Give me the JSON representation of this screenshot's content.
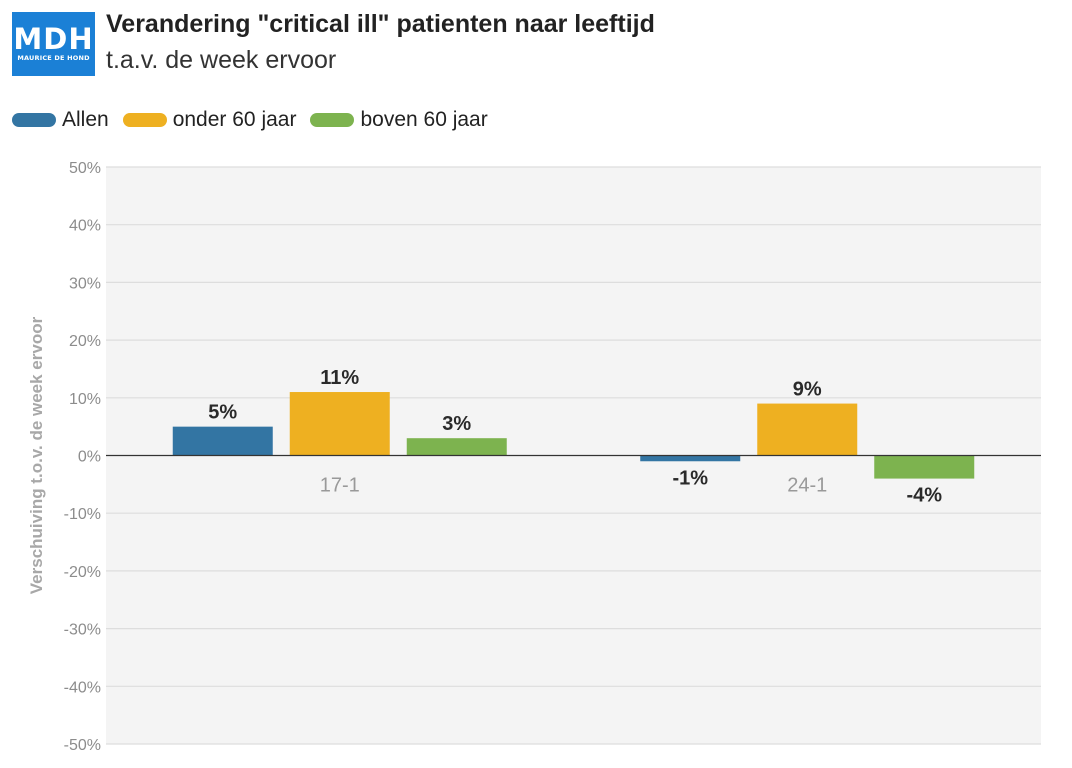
{
  "logo": {
    "main": "MDH",
    "sub": "MAURICE DE HOND"
  },
  "header": {
    "title": "Verandering \"critical ill\" patienten naar leeftijd",
    "subtitle": "t.a.v. de week ervoor"
  },
  "colors": {
    "allen": "#3375a3",
    "onder60": "#eeb021",
    "boven60": "#7db34f",
    "plot_bg": "#f4f4f4",
    "grid": "#dddddd",
    "axis_text": "#8c8c8c",
    "label_text": "#2a2a2a"
  },
  "chart_data": {
    "type": "bar",
    "title": "Verandering \"critical ill\" patienten naar leeftijd",
    "subtitle": "t.a.v. de week ervoor",
    "xlabel": "",
    "ylabel": "Verschuiving t.o.v. de week ervoor",
    "categories": [
      "17-1",
      "24-1"
    ],
    "series": [
      {
        "name": "Allen",
        "values": [
          5,
          -1
        ],
        "labels": [
          "5%",
          "-1%"
        ]
      },
      {
        "name": "onder 60 jaar",
        "values": [
          11,
          9
        ],
        "labels": [
          "11%",
          "9%"
        ]
      },
      {
        "name": "boven 60 jaar",
        "values": [
          3,
          -4
        ],
        "labels": [
          "3%",
          "-4%"
        ]
      }
    ],
    "ylim": [
      -50,
      50
    ],
    "yticks": [
      50,
      40,
      30,
      20,
      10,
      0,
      -10,
      -20,
      -30,
      -40,
      -50
    ],
    "ytick_labels": [
      "50%",
      "40%",
      "30%",
      "20%",
      "10%",
      "0%",
      "-10%",
      "-20%",
      "-30%",
      "-40%",
      "-50%"
    ],
    "grid": true,
    "legend_position": "top-left"
  }
}
